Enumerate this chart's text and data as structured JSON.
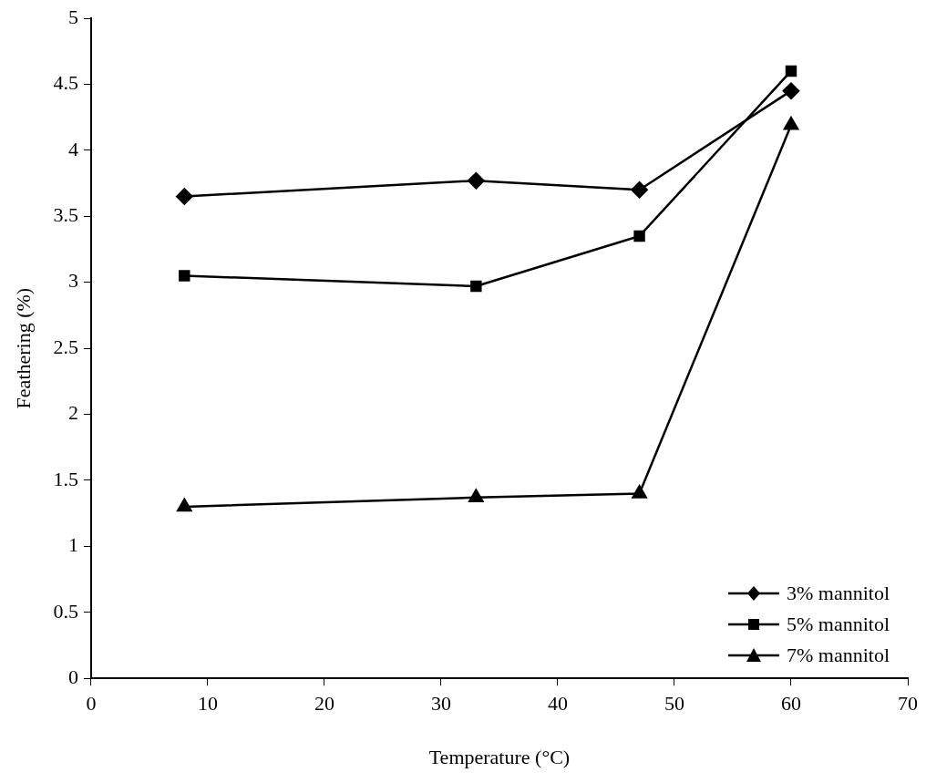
{
  "chart_data": {
    "type": "line",
    "xlabel": "Temperature (°C)",
    "ylabel": "Feathering (%)",
    "x": [
      8,
      33,
      47,
      60
    ],
    "series": [
      {
        "name": "3% mannitol",
        "color": "#000000",
        "marker": "diamond",
        "values": [
          3.65,
          3.77,
          3.7,
          4.45
        ]
      },
      {
        "name": "5% mannitol",
        "color": "#000000",
        "marker": "square",
        "values": [
          3.05,
          2.97,
          3.35,
          4.6
        ]
      },
      {
        "name": "7% mannitol",
        "color": "#000000",
        "marker": "triangle",
        "values": [
          1.3,
          1.37,
          1.4,
          4.19
        ]
      }
    ],
    "xlim": [
      0,
      70
    ],
    "xticks": [
      0,
      10,
      20,
      30,
      40,
      50,
      60,
      70
    ],
    "ylim": [
      0,
      5
    ],
    "yticks": [
      0,
      0.5,
      1,
      1.5,
      2,
      2.5,
      3,
      3.5,
      4,
      4.5,
      5
    ],
    "grid": false,
    "legend": "bottom right",
    "line_style": "solid"
  }
}
